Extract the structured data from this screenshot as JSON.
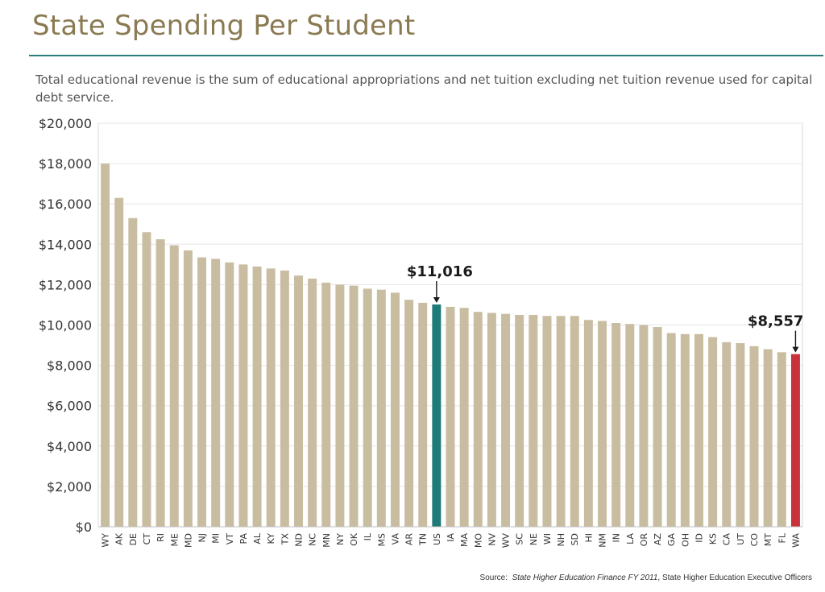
{
  "title": "State Spending Per Student",
  "subtitle": "Total educational revenue is the sum of educational appropriations and net tuition excluding net tuition revenue used for capital debt service.",
  "source": {
    "label": "Source:",
    "publication": "State Higher Education Finance FY 2011",
    "org": ", State Higher Education Executive Officers"
  },
  "colors": {
    "bar": "#c9bda1",
    "us": "#1e7b78",
    "wa": "#c8323a",
    "title": "#8a7a52",
    "rule": "#2a7b7a",
    "grid": "#e6e6e6",
    "axis_text": "#333333"
  },
  "chart_data": {
    "type": "bar",
    "categories": [
      "WY",
      "AK",
      "DE",
      "CT",
      "RI",
      "ME",
      "MD",
      "NJ",
      "MI",
      "VT",
      "PA",
      "AL",
      "KY",
      "TX",
      "ND",
      "NC",
      "MN",
      "NY",
      "OK",
      "IL",
      "MS",
      "VA",
      "AR",
      "TN",
      "US",
      "IA",
      "MA",
      "MO",
      "NV",
      "WV",
      "SC",
      "NE",
      "WI",
      "NH",
      "SD",
      "HI",
      "NM",
      "IN",
      "LA",
      "OR",
      "AZ",
      "GA",
      "OH",
      "ID",
      "KS",
      "CA",
      "UT",
      "CO",
      "MT",
      "FL",
      "WA"
    ],
    "values": [
      18000,
      16300,
      15300,
      14600,
      14250,
      13950,
      13700,
      13350,
      13280,
      13100,
      13000,
      12900,
      12800,
      12700,
      12450,
      12300,
      12100,
      12000,
      11950,
      11800,
      11750,
      11600,
      11250,
      11100,
      11016,
      10900,
      10850,
      10650,
      10600,
      10550,
      10500,
      10500,
      10450,
      10450,
      10450,
      10250,
      10200,
      10100,
      10050,
      10000,
      9900,
      9600,
      9550,
      9550,
      9400,
      9150,
      9100,
      8950,
      8800,
      8650,
      8557
    ],
    "ylim": [
      0,
      20000
    ],
    "yticks": [
      0,
      2000,
      4000,
      6000,
      8000,
      10000,
      12000,
      14000,
      16000,
      18000,
      20000
    ],
    "ytick_labels": [
      "$0",
      "$2,000",
      "$4,000",
      "$6,000",
      "$8,000",
      "$10,000",
      "$12,000",
      "$14,000",
      "$16,000",
      "$18,000",
      "$20,000"
    ],
    "grid": true,
    "annotations": [
      {
        "category": "US",
        "label": "$11,016"
      },
      {
        "category": "WA",
        "label": "$8,557"
      }
    ],
    "highlight": {
      "US": "us",
      "WA": "wa"
    }
  }
}
